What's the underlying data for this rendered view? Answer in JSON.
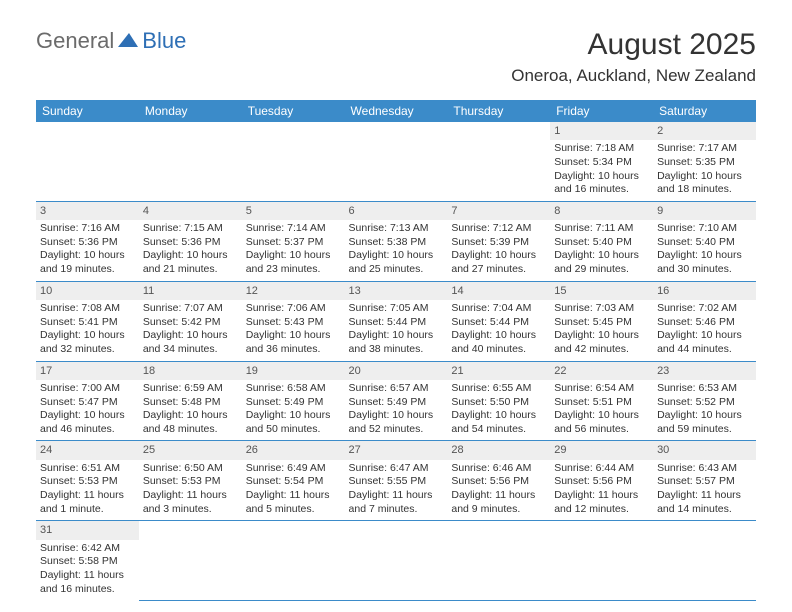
{
  "brand": {
    "part1": "General",
    "part2": "Blue"
  },
  "title": "August 2025",
  "location": "Oneroa, Auckland, New Zealand",
  "colors": {
    "header_bg": "#3b8bc9",
    "header_text": "#ffffff",
    "daynum_bg": "#eeeeee",
    "row_border": "#3b8bc9",
    "logo_blue": "#2e6fb5",
    "logo_gray": "#6b6b6b"
  },
  "weekdays": [
    "Sunday",
    "Monday",
    "Tuesday",
    "Wednesday",
    "Thursday",
    "Friday",
    "Saturday"
  ],
  "weeks": [
    [
      null,
      null,
      null,
      null,
      null,
      {
        "n": "1",
        "sr": "Sunrise: 7:18 AM",
        "ss": "Sunset: 5:34 PM",
        "d1": "Daylight: 10 hours",
        "d2": "and 16 minutes."
      },
      {
        "n": "2",
        "sr": "Sunrise: 7:17 AM",
        "ss": "Sunset: 5:35 PM",
        "d1": "Daylight: 10 hours",
        "d2": "and 18 minutes."
      }
    ],
    [
      {
        "n": "3",
        "sr": "Sunrise: 7:16 AM",
        "ss": "Sunset: 5:36 PM",
        "d1": "Daylight: 10 hours",
        "d2": "and 19 minutes."
      },
      {
        "n": "4",
        "sr": "Sunrise: 7:15 AM",
        "ss": "Sunset: 5:36 PM",
        "d1": "Daylight: 10 hours",
        "d2": "and 21 minutes."
      },
      {
        "n": "5",
        "sr": "Sunrise: 7:14 AM",
        "ss": "Sunset: 5:37 PM",
        "d1": "Daylight: 10 hours",
        "d2": "and 23 minutes."
      },
      {
        "n": "6",
        "sr": "Sunrise: 7:13 AM",
        "ss": "Sunset: 5:38 PM",
        "d1": "Daylight: 10 hours",
        "d2": "and 25 minutes."
      },
      {
        "n": "7",
        "sr": "Sunrise: 7:12 AM",
        "ss": "Sunset: 5:39 PM",
        "d1": "Daylight: 10 hours",
        "d2": "and 27 minutes."
      },
      {
        "n": "8",
        "sr": "Sunrise: 7:11 AM",
        "ss": "Sunset: 5:40 PM",
        "d1": "Daylight: 10 hours",
        "d2": "and 29 minutes."
      },
      {
        "n": "9",
        "sr": "Sunrise: 7:10 AM",
        "ss": "Sunset: 5:40 PM",
        "d1": "Daylight: 10 hours",
        "d2": "and 30 minutes."
      }
    ],
    [
      {
        "n": "10",
        "sr": "Sunrise: 7:08 AM",
        "ss": "Sunset: 5:41 PM",
        "d1": "Daylight: 10 hours",
        "d2": "and 32 minutes."
      },
      {
        "n": "11",
        "sr": "Sunrise: 7:07 AM",
        "ss": "Sunset: 5:42 PM",
        "d1": "Daylight: 10 hours",
        "d2": "and 34 minutes."
      },
      {
        "n": "12",
        "sr": "Sunrise: 7:06 AM",
        "ss": "Sunset: 5:43 PM",
        "d1": "Daylight: 10 hours",
        "d2": "and 36 minutes."
      },
      {
        "n": "13",
        "sr": "Sunrise: 7:05 AM",
        "ss": "Sunset: 5:44 PM",
        "d1": "Daylight: 10 hours",
        "d2": "and 38 minutes."
      },
      {
        "n": "14",
        "sr": "Sunrise: 7:04 AM",
        "ss": "Sunset: 5:44 PM",
        "d1": "Daylight: 10 hours",
        "d2": "and 40 minutes."
      },
      {
        "n": "15",
        "sr": "Sunrise: 7:03 AM",
        "ss": "Sunset: 5:45 PM",
        "d1": "Daylight: 10 hours",
        "d2": "and 42 minutes."
      },
      {
        "n": "16",
        "sr": "Sunrise: 7:02 AM",
        "ss": "Sunset: 5:46 PM",
        "d1": "Daylight: 10 hours",
        "d2": "and 44 minutes."
      }
    ],
    [
      {
        "n": "17",
        "sr": "Sunrise: 7:00 AM",
        "ss": "Sunset: 5:47 PM",
        "d1": "Daylight: 10 hours",
        "d2": "and 46 minutes."
      },
      {
        "n": "18",
        "sr": "Sunrise: 6:59 AM",
        "ss": "Sunset: 5:48 PM",
        "d1": "Daylight: 10 hours",
        "d2": "and 48 minutes."
      },
      {
        "n": "19",
        "sr": "Sunrise: 6:58 AM",
        "ss": "Sunset: 5:49 PM",
        "d1": "Daylight: 10 hours",
        "d2": "and 50 minutes."
      },
      {
        "n": "20",
        "sr": "Sunrise: 6:57 AM",
        "ss": "Sunset: 5:49 PM",
        "d1": "Daylight: 10 hours",
        "d2": "and 52 minutes."
      },
      {
        "n": "21",
        "sr": "Sunrise: 6:55 AM",
        "ss": "Sunset: 5:50 PM",
        "d1": "Daylight: 10 hours",
        "d2": "and 54 minutes."
      },
      {
        "n": "22",
        "sr": "Sunrise: 6:54 AM",
        "ss": "Sunset: 5:51 PM",
        "d1": "Daylight: 10 hours",
        "d2": "and 56 minutes."
      },
      {
        "n": "23",
        "sr": "Sunrise: 6:53 AM",
        "ss": "Sunset: 5:52 PM",
        "d1": "Daylight: 10 hours",
        "d2": "and 59 minutes."
      }
    ],
    [
      {
        "n": "24",
        "sr": "Sunrise: 6:51 AM",
        "ss": "Sunset: 5:53 PM",
        "d1": "Daylight: 11 hours",
        "d2": "and 1 minute."
      },
      {
        "n": "25",
        "sr": "Sunrise: 6:50 AM",
        "ss": "Sunset: 5:53 PM",
        "d1": "Daylight: 11 hours",
        "d2": "and 3 minutes."
      },
      {
        "n": "26",
        "sr": "Sunrise: 6:49 AM",
        "ss": "Sunset: 5:54 PM",
        "d1": "Daylight: 11 hours",
        "d2": "and 5 minutes."
      },
      {
        "n": "27",
        "sr": "Sunrise: 6:47 AM",
        "ss": "Sunset: 5:55 PM",
        "d1": "Daylight: 11 hours",
        "d2": "and 7 minutes."
      },
      {
        "n": "28",
        "sr": "Sunrise: 6:46 AM",
        "ss": "Sunset: 5:56 PM",
        "d1": "Daylight: 11 hours",
        "d2": "and 9 minutes."
      },
      {
        "n": "29",
        "sr": "Sunrise: 6:44 AM",
        "ss": "Sunset: 5:56 PM",
        "d1": "Daylight: 11 hours",
        "d2": "and 12 minutes."
      },
      {
        "n": "30",
        "sr": "Sunrise: 6:43 AM",
        "ss": "Sunset: 5:57 PM",
        "d1": "Daylight: 11 hours",
        "d2": "and 14 minutes."
      }
    ],
    [
      {
        "n": "31",
        "sr": "Sunrise: 6:42 AM",
        "ss": "Sunset: 5:58 PM",
        "d1": "Daylight: 11 hours",
        "d2": "and 16 minutes."
      },
      null,
      null,
      null,
      null,
      null,
      null
    ]
  ]
}
